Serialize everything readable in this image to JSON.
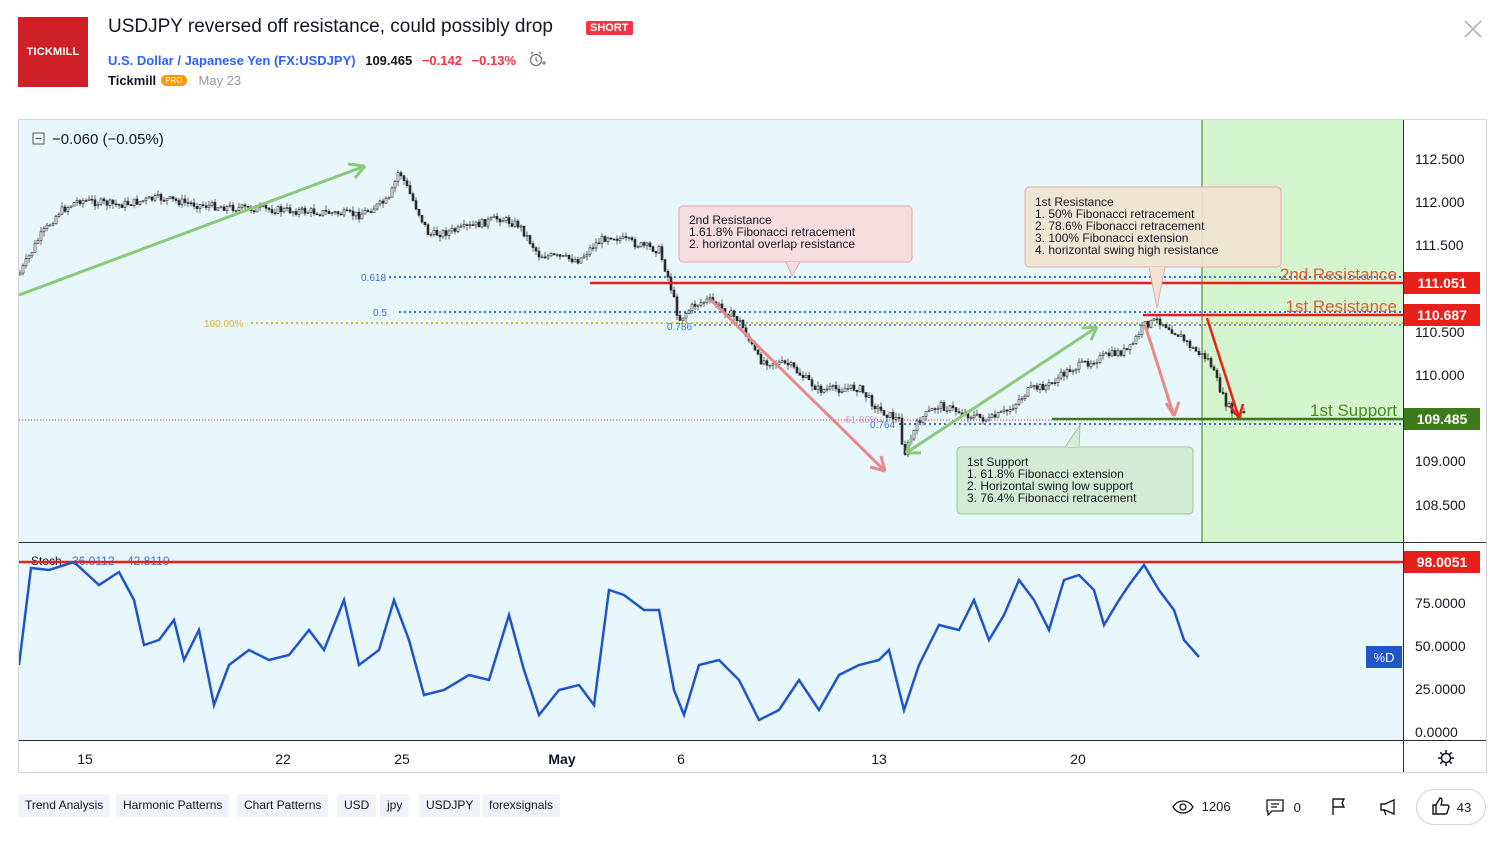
{
  "header": {
    "logo_text": "TICKMILL",
    "title": "USDJPY reversed off resistance, could possibly drop",
    "badge": "SHORT",
    "symbol_name": "U.S. Dollar / Japanese Yen",
    "symbol_ticker": "(FX:USDJPY)",
    "price": "109.465",
    "change": "−0.142",
    "change_pct": "−0.13%",
    "author": "Tickmill",
    "author_badge": "PRO",
    "date": "May 23"
  },
  "colors": {
    "bg_chart": "#e8f7fc",
    "target_zone": "#d5f5cf",
    "resistance_red": "#e8201b",
    "support_green": "#3d7a1b",
    "arrow_green": "#8bc97a",
    "arrow_pink": "#e88a8a",
    "stoch_blue": "#1e55c8",
    "fib_blue": "#3b6fd4",
    "fib_gold": "#d9b52a"
  },
  "chart": {
    "legend_change": "−0.060 (−0.05%)",
    "price_axis": [
      "112.500",
      "112.000",
      "111.500",
      "110.500",
      "110.000",
      "109.000",
      "108.500"
    ],
    "price_labels": {
      "r2": "111.051",
      "r1": "110.687",
      "s1": "109.485"
    },
    "fib_labels": {
      "f618": "0.618",
      "f05": "0.5",
      "f100": "100.00%",
      "f786": "0.786",
      "f764": "0.764",
      "f618ext": "61.80%"
    },
    "line_labels": {
      "r2": "2nd Resistance",
      "r1": "1st Resistance",
      "s1": "1st Support"
    },
    "callouts": {
      "r2": {
        "title": "2nd Resistance",
        "lines": [
          "1.61.8% Fibonacci retracement",
          "2. horizontal overlap resistance"
        ]
      },
      "r1": {
        "title": "1st Resistance",
        "lines": [
          "1. 50% Fibonacci retracement",
          "2. 78.6% Fibonacci retracement",
          "3. 100% Fibonacci extension",
          "4. horizontal swing high resistance"
        ]
      },
      "s1": {
        "title": "1st Support",
        "lines": [
          "1. 61.8% Fibonacci extension",
          "2. Horizontal swing low support",
          "3. 76.4% Fibonacci retracement"
        ]
      }
    },
    "time_axis": [
      "15",
      "22",
      "25",
      "May",
      "6",
      "13",
      "20"
    ],
    "stoch": {
      "label": "Stoch",
      "k": "36.0112",
      "d": "42.8110",
      "level_label": "98.0051",
      "axis": [
        "75.0000",
        "50.0000",
        "25.0000",
        "0.0000"
      ],
      "d_tag": "%D"
    },
    "settings_icon": "gear-icon"
  },
  "tags": [
    "Trend Analysis",
    "Harmonic Patterns",
    "Chart Patterns",
    "USD",
    "jpy",
    "USDJPY",
    "forexsignals"
  ],
  "footer": {
    "views": "1206",
    "comments": "0",
    "likes": "43"
  }
}
